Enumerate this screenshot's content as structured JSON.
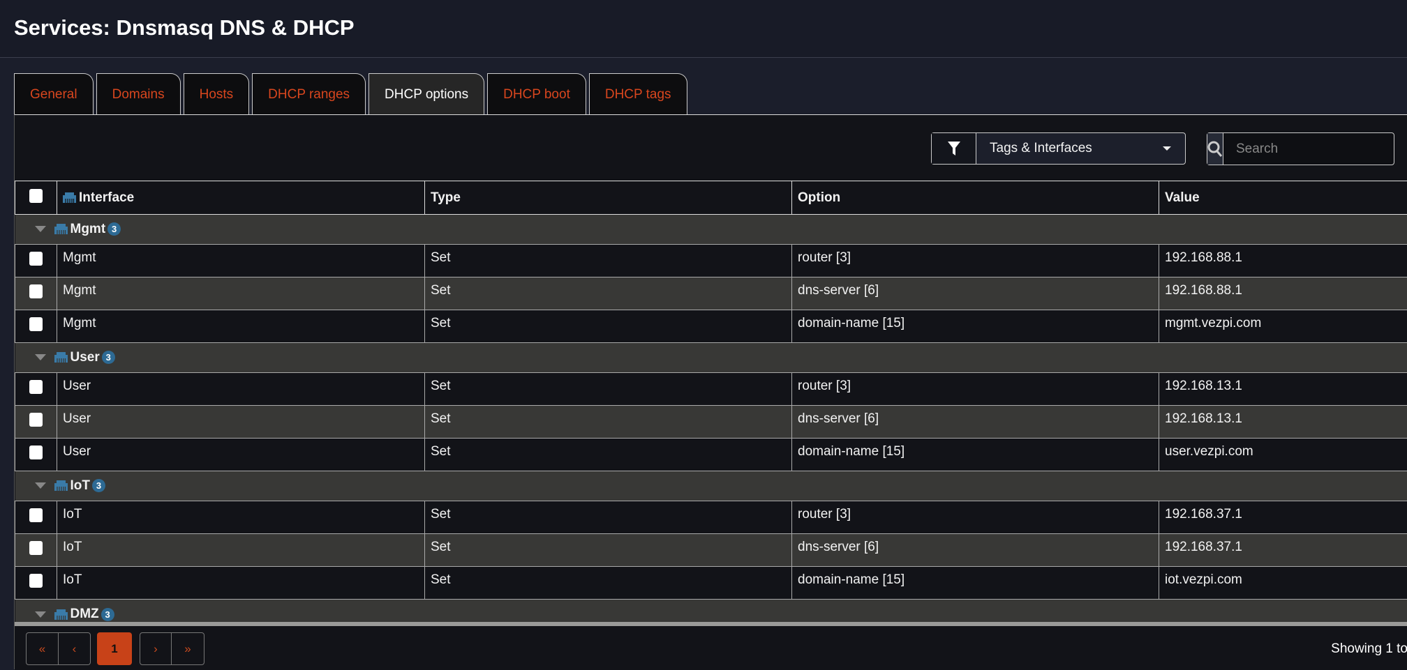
{
  "header": {
    "title": "Services: Dnsmasq DNS & DHCP"
  },
  "tabs": [
    {
      "label": "General"
    },
    {
      "label": "Domains"
    },
    {
      "label": "Hosts"
    },
    {
      "label": "DHCP ranges"
    },
    {
      "label": "DHCP options",
      "active": true
    },
    {
      "label": "DHCP boot"
    },
    {
      "label": "DHCP tags"
    }
  ],
  "toolbar": {
    "filter_label": "Tags & Interfaces",
    "search_placeholder": "Search",
    "search_value": ""
  },
  "table": {
    "columns": [
      "Interface",
      "Type",
      "Option",
      "Value"
    ],
    "groups": [
      {
        "name": "Mgmt",
        "count": "3",
        "rows": [
          [
            "Mgmt",
            "Set",
            "router [3]",
            "192.168.88.1"
          ],
          [
            "Mgmt",
            "Set",
            "dns-server [6]",
            "192.168.88.1"
          ],
          [
            "Mgmt",
            "Set",
            "domain-name [15]",
            "mgmt.vezpi.com"
          ]
        ]
      },
      {
        "name": "User",
        "count": "3",
        "rows": [
          [
            "User",
            "Set",
            "router [3]",
            "192.168.13.1"
          ],
          [
            "User",
            "Set",
            "dns-server [6]",
            "192.168.13.1"
          ],
          [
            "User",
            "Set",
            "domain-name [15]",
            "user.vezpi.com"
          ]
        ]
      },
      {
        "name": "IoT",
        "count": "3",
        "rows": [
          [
            "IoT",
            "Set",
            "router [3]",
            "192.168.37.1"
          ],
          [
            "IoT",
            "Set",
            "dns-server [6]",
            "192.168.37.1"
          ],
          [
            "IoT",
            "Set",
            "domain-name [15]",
            "iot.vezpi.com"
          ]
        ]
      },
      {
        "name": "DMZ",
        "count": "3",
        "rows": []
      }
    ]
  },
  "pagination": {
    "first": "«",
    "prev": "‹",
    "current": "1",
    "next": "›",
    "last": "»",
    "showing": "Showing 1 to"
  },
  "colors": {
    "accent": "#c84218",
    "badge": "#2d6a94",
    "group_row": "#383836"
  }
}
